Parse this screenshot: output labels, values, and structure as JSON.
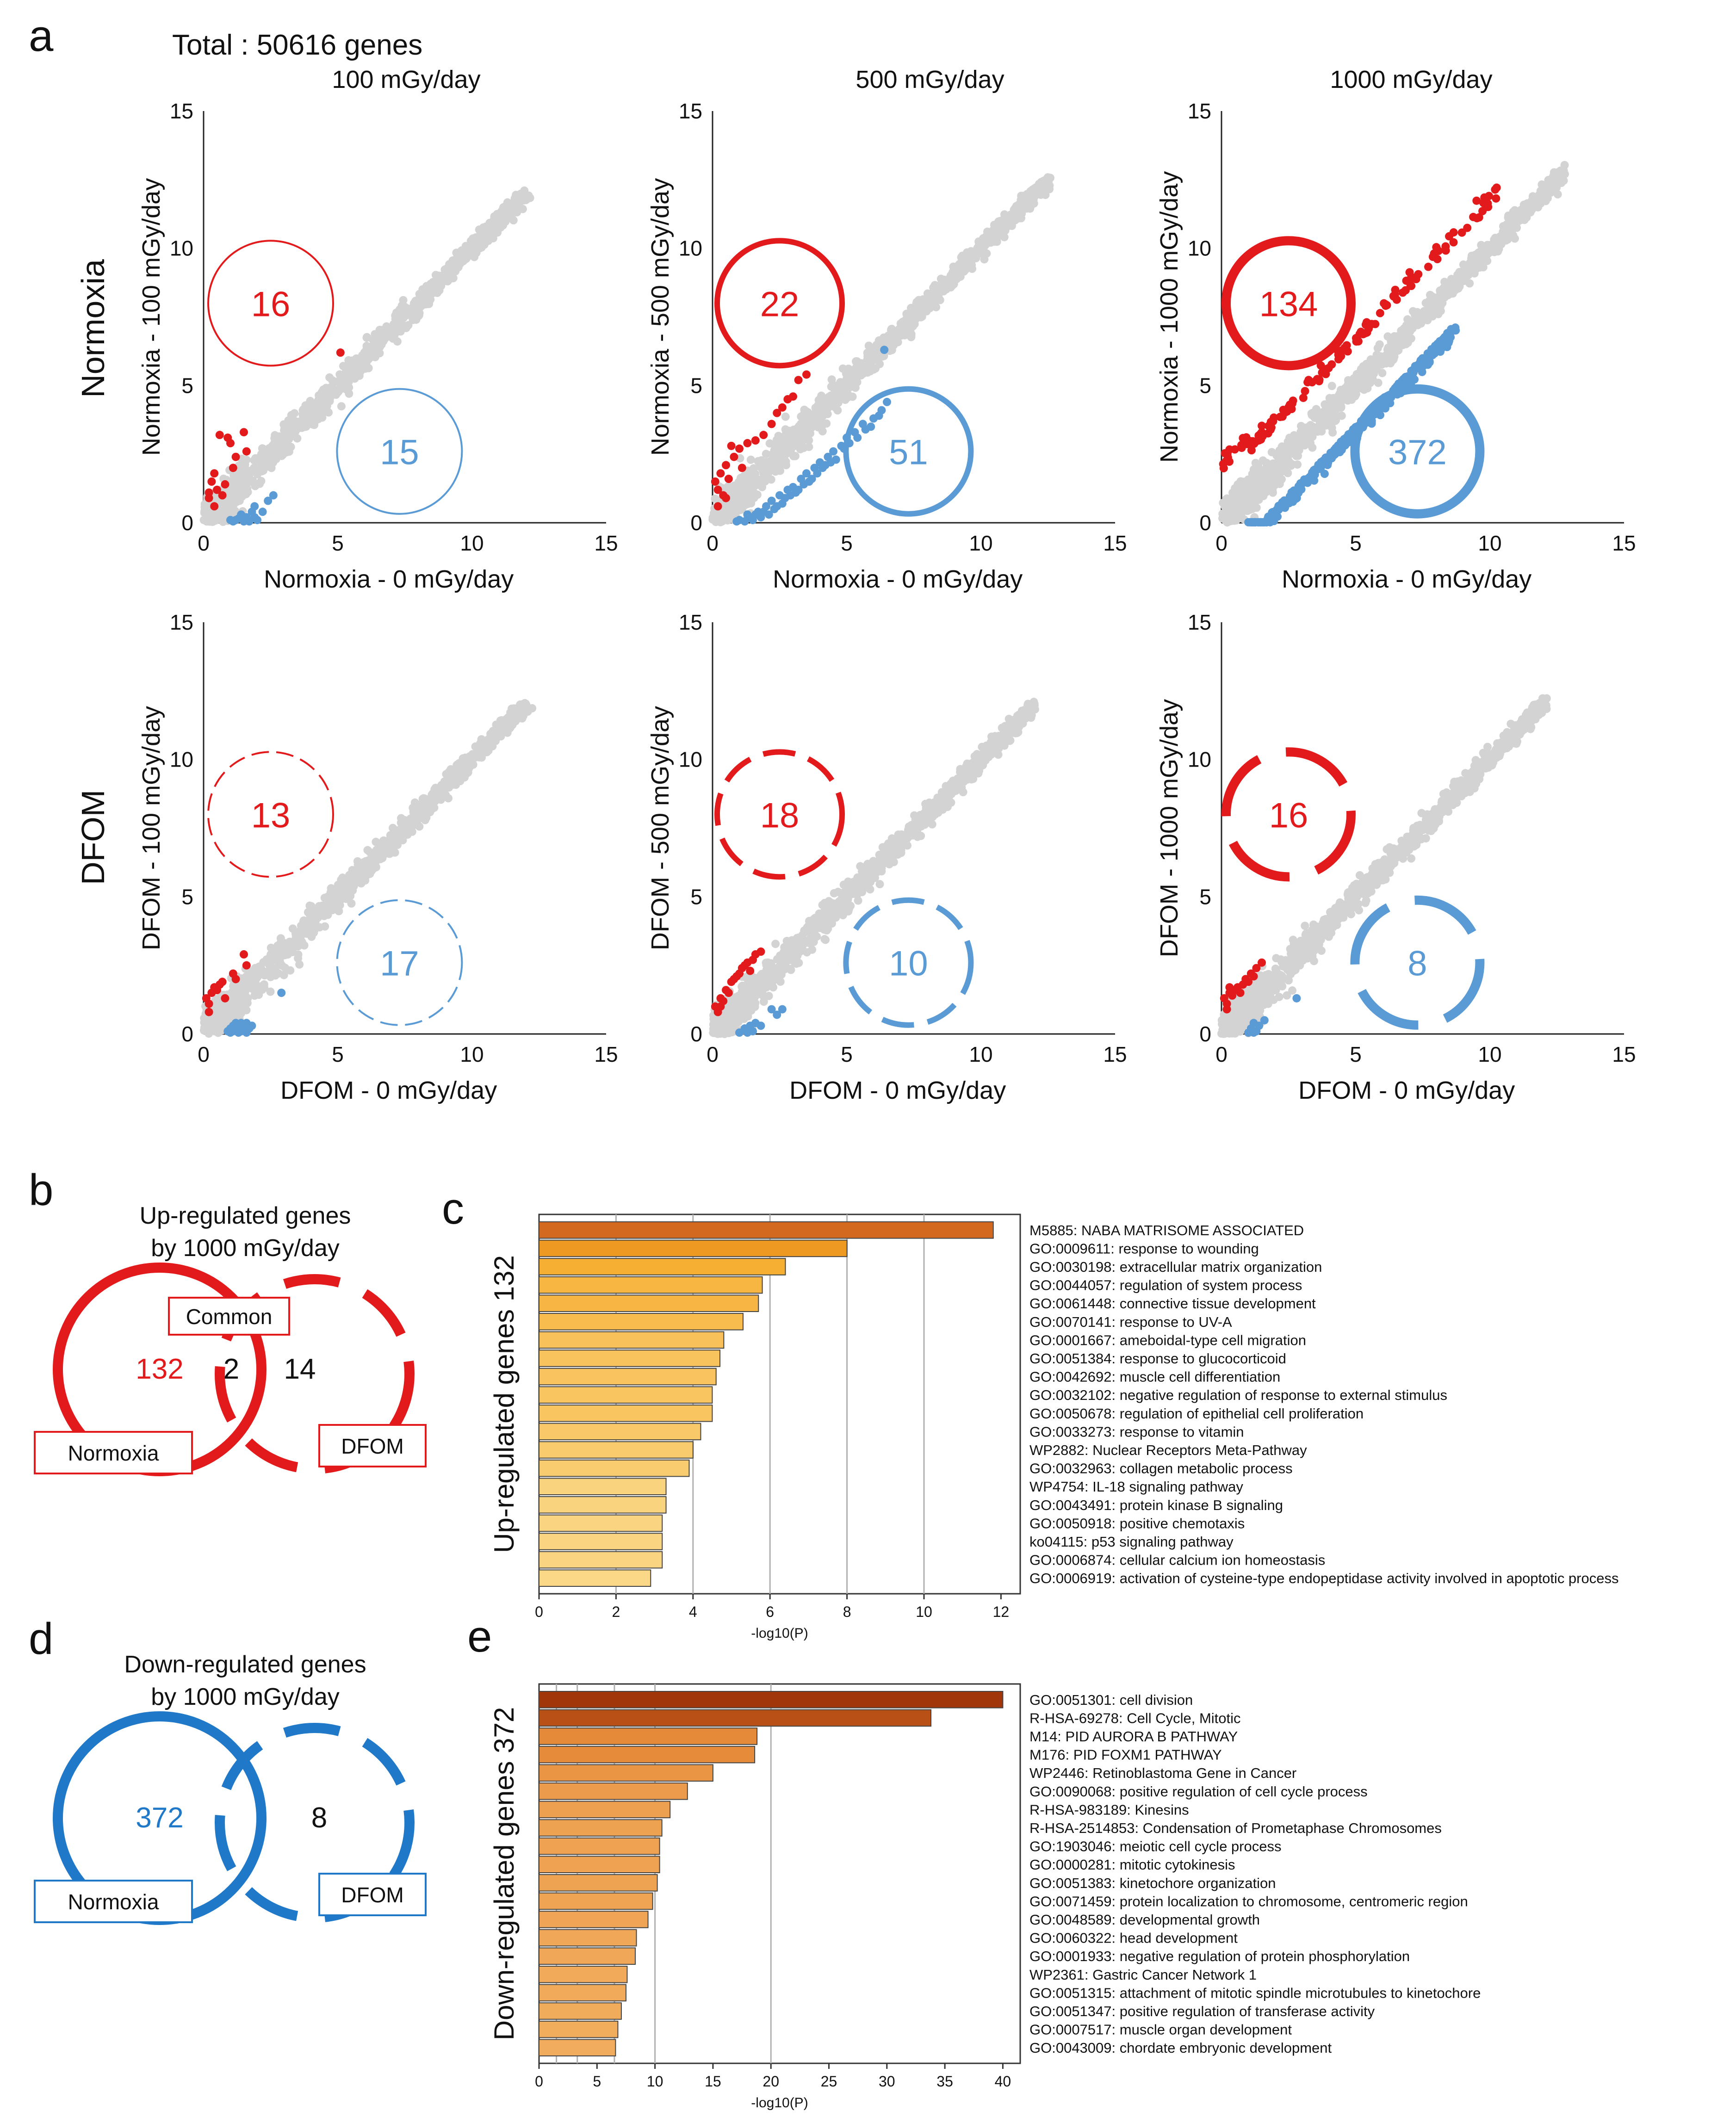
{
  "figure": {
    "panel_labels": {
      "a": "a",
      "b": "b",
      "c": "c",
      "d": "d",
      "e": "e"
    },
    "total_label": "Total : 50616 genes",
    "column_titles": [
      "100 mGy/day",
      "500 mGy/day",
      "1000 mGy/day"
    ],
    "row_titles": [
      "Normoxia",
      "DFOM"
    ]
  },
  "colors": {
    "up": "#e31a1c",
    "down": "#5b9bd5",
    "down_venn": "#1f78c8",
    "neutral": "#d3d3d3",
    "grid": "#b0b0b0"
  },
  "chart_data": [
    {
      "type": "scatter",
      "panel": "a",
      "row": 0,
      "col": 0,
      "title": "100 mGy/day",
      "xlabel": "Normoxia - 0 mGy/day",
      "ylabel": "Normoxia - 100 mGy/day",
      "xlim": [
        0,
        15
      ],
      "ylim": [
        0,
        15
      ],
      "ticks": [
        "0",
        "5",
        "10",
        "15"
      ],
      "up_count": "16",
      "down_count": "15",
      "circle_style": "thin",
      "diag_max": 12.0,
      "up_points": [
        [
          0.4,
          1.8
        ],
        [
          0.5,
          1.2
        ],
        [
          0.3,
          1.5
        ],
        [
          0.8,
          1.4
        ],
        [
          0.2,
          0.9
        ],
        [
          0.9,
          3.1
        ],
        [
          0.6,
          3.2
        ],
        [
          1.5,
          3.3
        ],
        [
          1.2,
          2.4
        ],
        [
          1.0,
          2.9
        ],
        [
          1.1,
          2.0
        ],
        [
          5.1,
          6.2
        ],
        [
          0.7,
          1.0
        ],
        [
          0.2,
          1.1
        ],
        [
          0.4,
          0.6
        ],
        [
          1.6,
          2.6
        ]
      ],
      "down_points": [
        [
          1.2,
          0.1
        ],
        [
          1.6,
          0.2
        ],
        [
          1.8,
          0.4
        ],
        [
          1.4,
          0.3
        ],
        [
          2.6,
          1.0
        ],
        [
          1.9,
          0.6
        ],
        [
          1.1,
          0.05
        ],
        [
          1.5,
          0.05
        ],
        [
          2.0,
          0.1
        ],
        [
          1.3,
          0.15
        ],
        [
          1.7,
          0.05
        ],
        [
          2.2,
          0.4
        ],
        [
          1.0,
          0.1
        ],
        [
          1.9,
          0.2
        ],
        [
          2.4,
          0.8
        ]
      ]
    },
    {
      "type": "scatter",
      "panel": "a",
      "row": 0,
      "col": 1,
      "title": "500 mGy/day",
      "xlabel": "Normoxia - 0 mGy/day",
      "ylabel": "Normoxia - 500 mGy/day",
      "xlim": [
        0,
        15
      ],
      "ylim": [
        0,
        15
      ],
      "ticks": [
        "0",
        "5",
        "10",
        "15"
      ],
      "up_count": "22",
      "down_count": "51",
      "circle_style": "medium",
      "diag_max": 12.5,
      "up_points": [
        [
          0.2,
          1.2
        ],
        [
          0.3,
          1.8
        ],
        [
          0.5,
          2.1
        ],
        [
          0.8,
          2.4
        ],
        [
          1.0,
          2.7
        ],
        [
          1.3,
          2.9
        ],
        [
          1.6,
          3.0
        ],
        [
          1.9,
          3.2
        ],
        [
          0.1,
          1.5
        ],
        [
          0.4,
          1.0
        ],
        [
          0.6,
          1.6
        ],
        [
          2.2,
          3.6
        ],
        [
          2.4,
          4.0
        ],
        [
          2.6,
          4.2
        ],
        [
          3.0,
          4.6
        ],
        [
          3.2,
          5.2
        ],
        [
          3.5,
          5.4
        ],
        [
          1.1,
          2.0
        ],
        [
          0.7,
          2.8
        ],
        [
          0.2,
          0.6
        ],
        [
          0.5,
          0.9
        ],
        [
          2.8,
          4.5
        ]
      ],
      "down_points": [
        [
          1.0,
          0.1
        ],
        [
          1.3,
          0.3
        ],
        [
          1.5,
          0.1
        ],
        [
          1.7,
          0.4
        ],
        [
          2.0,
          0.6
        ],
        [
          2.2,
          0.8
        ],
        [
          2.5,
          1.0
        ],
        [
          2.8,
          1.2
        ],
        [
          3.0,
          1.3
        ],
        [
          3.3,
          1.6
        ],
        [
          3.5,
          1.8
        ],
        [
          3.8,
          2.0
        ],
        [
          4.0,
          2.2
        ],
        [
          4.3,
          2.4
        ],
        [
          4.5,
          2.6
        ],
        [
          4.8,
          2.8
        ],
        [
          5.0,
          3.1
        ],
        [
          5.3,
          3.3
        ],
        [
          5.6,
          3.6
        ],
        [
          6.0,
          3.8
        ],
        [
          6.3,
          4.1
        ],
        [
          6.5,
          4.4
        ],
        [
          2.3,
          0.5
        ],
        [
          2.7,
          0.9
        ],
        [
          3.1,
          1.1
        ],
        [
          3.6,
          1.5
        ],
        [
          4.1,
          2.0
        ],
        [
          4.6,
          2.3
        ],
        [
          1.2,
          0.05
        ],
        [
          1.8,
          0.2
        ],
        [
          2.1,
          0.3
        ],
        [
          1.4,
          0.2
        ],
        [
          0.9,
          0.05
        ],
        [
          2.4,
          0.6
        ],
        [
          2.9,
          1.0
        ],
        [
          3.4,
          1.4
        ],
        [
          3.9,
          1.8
        ],
        [
          4.4,
          2.2
        ],
        [
          4.9,
          2.7
        ],
        [
          5.4,
          3.1
        ],
        [
          5.9,
          3.5
        ],
        [
          6.2,
          3.9
        ],
        [
          6.4,
          6.3
        ],
        [
          1.6,
          0.3
        ],
        [
          1.9,
          0.4
        ],
        [
          2.6,
          0.7
        ],
        [
          3.2,
          1.2
        ],
        [
          3.7,
          1.6
        ],
        [
          4.2,
          2.1
        ],
        [
          5.1,
          2.9
        ],
        [
          5.7,
          3.4
        ]
      ]
    },
    {
      "type": "scatter",
      "panel": "a",
      "row": 0,
      "col": 2,
      "title": "1000 mGy/day",
      "xlabel": "Normoxia - 0 mGy/day",
      "ylabel": "Normoxia - 1000 mGy/day",
      "xlim": [
        0,
        15
      ],
      "ylim": [
        0,
        15
      ],
      "ticks": [
        "0",
        "5",
        "10",
        "15"
      ],
      "up_count": "134",
      "down_count": "372",
      "circle_style": "thick",
      "diag_max": 12.8,
      "up_band": {
        "n": 134,
        "offset": 1.5,
        "xmax": 10.3
      },
      "down_band": {
        "n": 372,
        "offset": -1.5,
        "xmax": 8.8
      }
    },
    {
      "type": "scatter",
      "panel": "a",
      "row": 1,
      "col": 0,
      "title": "100 mGy/day",
      "xlabel": "DFOM - 0 mGy/day",
      "ylabel": "DFOM - 100 mGy/day",
      "xlim": [
        0,
        15
      ],
      "ylim": [
        0,
        15
      ],
      "ticks": [
        "0",
        "5",
        "10",
        "15"
      ],
      "up_count": "13",
      "down_count": "17",
      "circle_style": "thin-dashed",
      "diag_max": 12.0,
      "up_points": [
        [
          0.2,
          1.1
        ],
        [
          0.3,
          1.5
        ],
        [
          0.5,
          1.6
        ],
        [
          0.1,
          1.3
        ],
        [
          0.6,
          1.8
        ],
        [
          0.8,
          1.3
        ],
        [
          1.2,
          2.0
        ],
        [
          1.6,
          2.5
        ],
        [
          1.5,
          2.9
        ],
        [
          1.1,
          2.2
        ],
        [
          0.4,
          1.7
        ],
        [
          0.2,
          0.8
        ],
        [
          0.7,
          1.9
        ]
      ],
      "down_points": [
        [
          1.0,
          0.05
        ],
        [
          1.2,
          0.2
        ],
        [
          1.4,
          0.1
        ],
        [
          1.1,
          0.3
        ],
        [
          1.6,
          0.05
        ],
        [
          1.3,
          0.05
        ],
        [
          0.9,
          0.1
        ],
        [
          1.5,
          0.3
        ],
        [
          1.7,
          0.2
        ],
        [
          1.2,
          0.4
        ],
        [
          2.9,
          1.5
        ],
        [
          1.0,
          0.2
        ],
        [
          1.4,
          0.4
        ],
        [
          1.8,
          0.3
        ],
        [
          1.1,
          0.1
        ],
        [
          1.3,
          0.3
        ],
        [
          1.6,
          0.4
        ]
      ]
    },
    {
      "type": "scatter",
      "panel": "a",
      "row": 1,
      "col": 1,
      "title": "500 mGy/day",
      "xlabel": "DFOM - 0 mGy/day",
      "ylabel": "DFOM - 500 mGy/day",
      "xlim": [
        0,
        15
      ],
      "ylim": [
        0,
        15
      ],
      "ticks": [
        "0",
        "5",
        "10",
        "15"
      ],
      "up_count": "18",
      "down_count": "10",
      "circle_style": "medium-dashed",
      "diag_max": 12.0,
      "up_points": [
        [
          0.1,
          1.0
        ],
        [
          0.3,
          1.3
        ],
        [
          0.5,
          1.6
        ],
        [
          0.7,
          1.9
        ],
        [
          0.9,
          2.1
        ],
        [
          1.1,
          2.4
        ],
        [
          1.3,
          2.6
        ],
        [
          1.5,
          2.7
        ],
        [
          1.8,
          3.0
        ],
        [
          0.2,
          0.8
        ],
        [
          0.4,
          1.2
        ],
        [
          0.6,
          1.5
        ],
        [
          0.8,
          2.0
        ],
        [
          1.0,
          2.2
        ],
        [
          1.2,
          2.5
        ],
        [
          1.4,
          2.3
        ],
        [
          1.6,
          2.9
        ],
        [
          0.3,
          1.0
        ]
      ],
      "down_points": [
        [
          1.0,
          0.05
        ],
        [
          1.2,
          0.2
        ],
        [
          1.4,
          0.3
        ],
        [
          1.6,
          0.4
        ],
        [
          2.2,
          0.9
        ],
        [
          2.6,
          0.9
        ],
        [
          1.3,
          0.05
        ],
        [
          1.8,
          0.3
        ],
        [
          2.4,
          0.7
        ],
        [
          1.5,
          0.1
        ]
      ]
    },
    {
      "type": "scatter",
      "panel": "a",
      "row": 1,
      "col": 2,
      "title": "1000 mGy/day",
      "xlabel": "DFOM - 0 mGy/day",
      "ylabel": "DFOM - 1000 mGy/day",
      "xlim": [
        0,
        15
      ],
      "ylim": [
        0,
        15
      ],
      "ticks": [
        "0",
        "5",
        "10",
        "15"
      ],
      "up_count": "16",
      "down_count": "8",
      "circle_style": "thick-dashed",
      "diag_max": 12.1,
      "up_points": [
        [
          0.1,
          1.3
        ],
        [
          0.3,
          1.5
        ],
        [
          0.5,
          1.6
        ],
        [
          0.2,
          1.1
        ],
        [
          0.6,
          1.7
        ],
        [
          0.4,
          1.4
        ],
        [
          0.8,
          1.8
        ],
        [
          1.0,
          1.9
        ],
        [
          1.1,
          2.2
        ],
        [
          1.3,
          2.4
        ],
        [
          1.5,
          2.6
        ],
        [
          0.2,
          0.9
        ],
        [
          0.7,
          1.5
        ],
        [
          0.9,
          2.0
        ],
        [
          1.2,
          2.1
        ],
        [
          0.3,
          1.7
        ]
      ],
      "down_points": [
        [
          1.0,
          0.05
        ],
        [
          1.1,
          0.2
        ],
        [
          1.2,
          0.4
        ],
        [
          1.3,
          0.1
        ],
        [
          1.4,
          0.3
        ],
        [
          2.8,
          1.3
        ],
        [
          1.6,
          0.5
        ],
        [
          1.2,
          0.05
        ]
      ]
    },
    {
      "type": "venn",
      "panel": "b",
      "title": [
        "Up-regulated genes",
        "by 1000 mGy/day"
      ],
      "left_label": "Normoxia",
      "right_label": "DFOM",
      "common_label": "Common",
      "left_only": "132",
      "overlap": "2",
      "right_only": "14"
    },
    {
      "type": "bar",
      "panel": "c",
      "orientation": "horizontal",
      "ylabel": "Up-regulated genes 132",
      "xlabel": "-log10(P)",
      "xlim": [
        0,
        12.5
      ],
      "xticks": [
        "0",
        "2",
        "4",
        "6",
        "8",
        "10",
        "12"
      ],
      "categories": [
        "M5885: NABA MATRISOME ASSOCIATED",
        "GO:0009611: response to wounding",
        "GO:0030198: extracellular matrix organization",
        "GO:0044057: regulation of system process",
        "GO:0061448: connective tissue development",
        "GO:0070141: response to UV-A",
        "GO:0001667: ameboidal-type cell migration",
        "GO:0051384: response to glucocorticoid",
        "GO:0042692: muscle cell differentiation",
        "GO:0032102: negative regulation of response to external stimulus",
        "GO:0050678: regulation of epithelial cell proliferation",
        "GO:0033273: response to vitamin",
        "WP2882: Nuclear Receptors Meta-Pathway",
        "GO:0032963: collagen metabolic process",
        "WP4754: IL-18 signaling pathway",
        "GO:0043491: protein kinase B signaling",
        "GO:0050918: positive chemotaxis",
        "ko04115: p53 signaling pathway",
        "GO:0006874: cellular calcium ion homeostasis",
        "GO:0006919: activation of cysteine-type endopeptidase activity involved in apoptotic process"
      ],
      "values": [
        11.8,
        8.0,
        6.4,
        5.8,
        5.7,
        5.3,
        4.8,
        4.7,
        4.6,
        4.5,
        4.5,
        4.2,
        4.0,
        3.9,
        3.3,
        3.3,
        3.2,
        3.2,
        3.2,
        2.9
      ]
    },
    {
      "type": "venn",
      "panel": "d",
      "title": [
        "Down-regulated genes",
        "by 1000 mGy/day"
      ],
      "left_label": "Normoxia",
      "right_label": "DFOM",
      "left_only": "372",
      "right_only": "8"
    },
    {
      "type": "bar",
      "panel": "e",
      "orientation": "horizontal",
      "ylabel": "Down-regulated genes 372",
      "xlabel": "-log10(P)",
      "xlim": [
        0,
        41.5
      ],
      "xticks": [
        "0",
        "5",
        "10",
        "15",
        "20",
        "25",
        "30",
        "35",
        "40"
      ],
      "categories": [
        "GO:0051301: cell division",
        "R-HSA-69278: Cell Cycle, Mitotic",
        "M14: PID AURORA B PATHWAY",
        "M176: PID FOXM1 PATHWAY",
        "WP2446: Retinoblastoma Gene in Cancer",
        "GO:0090068: positive regulation of cell cycle process",
        "R-HSA-983189: Kinesins",
        "R-HSA-2514853: Condensation of Prometaphase Chromosomes",
        "GO:1903046: meiotic cell cycle process",
        "GO:0000281: mitotic cytokinesis",
        "GO:0051383: kinetochore organization",
        "GO:0071459: protein localization to chromosome, centromeric region",
        "GO:0048589: developmental growth",
        "GO:0060322: head development",
        "GO:0001933: negative regulation of protein phosphorylation",
        "WP2361: Gastric Cancer Network 1",
        "GO:0051315: attachment of mitotic spindle microtubules to kinetochore",
        "GO:0051347: positive regulation of transferase activity",
        "GO:0007517: muscle organ development",
        "GO:0043009: chordate embryonic development"
      ],
      "values": [
        40.0,
        33.8,
        18.8,
        18.6,
        15.0,
        12.8,
        11.3,
        10.6,
        10.4,
        10.4,
        10.2,
        9.8,
        9.4,
        8.4,
        8.3,
        7.6,
        7.5,
        7.1,
        6.8,
        6.6
      ]
    }
  ]
}
